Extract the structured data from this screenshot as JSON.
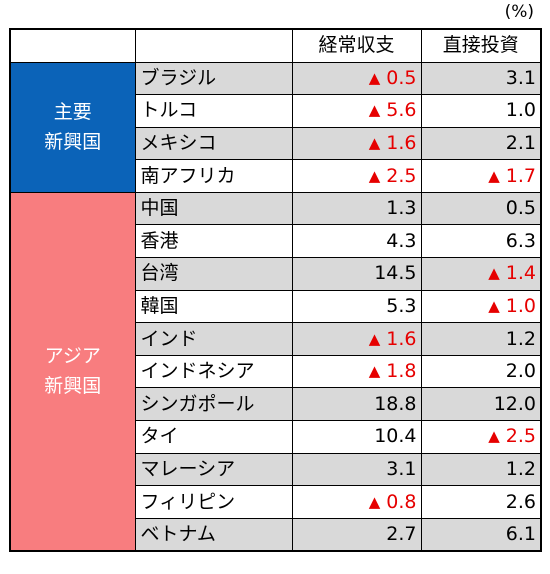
{
  "unit_label": "(%)",
  "headers": {
    "blank1": "",
    "blank2": "",
    "current_account": "経常収支",
    "direct_investment": "直接投資"
  },
  "negative_marker": "▲",
  "groups": [
    {
      "label_lines": [
        "主要",
        "新興国"
      ],
      "color": "#0b63b8",
      "rows": [
        {
          "country": "ブラジル",
          "current_account": "0.5",
          "ca_negative": true,
          "direct_investment": "3.1",
          "di_negative": false
        },
        {
          "country": "トルコ",
          "current_account": "5.6",
          "ca_negative": true,
          "direct_investment": "1.0",
          "di_negative": false
        },
        {
          "country": "メキシコ",
          "current_account": "1.6",
          "ca_negative": true,
          "direct_investment": "2.1",
          "di_negative": false
        },
        {
          "country": "南アフリカ",
          "current_account": "2.5",
          "ca_negative": true,
          "direct_investment": "1.7",
          "di_negative": true
        }
      ]
    },
    {
      "label_lines": [
        "アジア",
        "新興国"
      ],
      "color": "#f87d7f",
      "rows": [
        {
          "country": "中国",
          "current_account": "1.3",
          "ca_negative": false,
          "direct_investment": "0.5",
          "di_negative": false
        },
        {
          "country": "香港",
          "current_account": "4.3",
          "ca_negative": false,
          "direct_investment": "6.3",
          "di_negative": false
        },
        {
          "country": "台湾",
          "current_account": "14.5",
          "ca_negative": false,
          "direct_investment": "1.4",
          "di_negative": true
        },
        {
          "country": "韓国",
          "current_account": "5.3",
          "ca_negative": false,
          "direct_investment": "1.0",
          "di_negative": true
        },
        {
          "country": "インド",
          "current_account": "1.6",
          "ca_negative": true,
          "direct_investment": "1.2",
          "di_negative": false
        },
        {
          "country": "インドネシア",
          "current_account": "1.8",
          "ca_negative": true,
          "direct_investment": "2.0",
          "di_negative": false
        },
        {
          "country": "シンガポール",
          "current_account": "18.8",
          "ca_negative": false,
          "direct_investment": "12.0",
          "di_negative": false
        },
        {
          "country": "タイ",
          "current_account": "10.4",
          "ca_negative": false,
          "direct_investment": "2.5",
          "di_negative": true
        },
        {
          "country": "マレーシア",
          "current_account": "3.1",
          "ca_negative": false,
          "direct_investment": "1.2",
          "di_negative": false
        },
        {
          "country": "フィリピン",
          "current_account": "0.8",
          "ca_negative": true,
          "direct_investment": "2.6",
          "di_negative": false
        },
        {
          "country": "ベトナム",
          "current_account": "2.7",
          "ca_negative": false,
          "direct_investment": "6.1",
          "di_negative": false
        }
      ]
    }
  ]
}
